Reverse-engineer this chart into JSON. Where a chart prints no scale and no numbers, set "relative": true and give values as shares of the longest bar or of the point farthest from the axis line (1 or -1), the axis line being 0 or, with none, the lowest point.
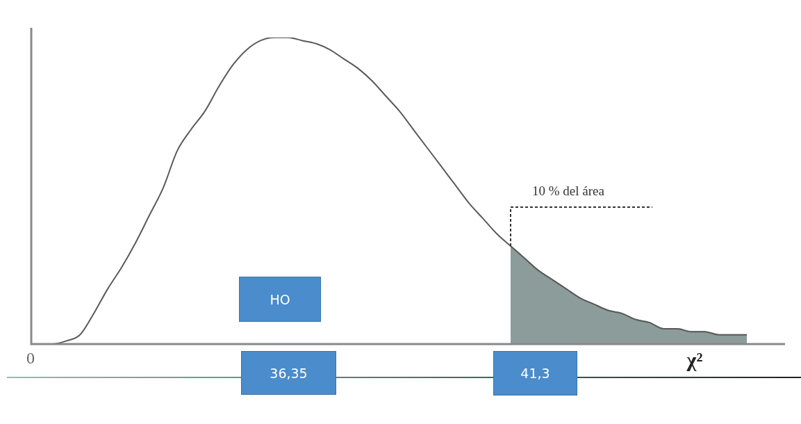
{
  "chart_data": {
    "type": "line",
    "relative": true,
    "xlabel": "χ²",
    "categories": [
      null,
      null,
      null,
      null,
      null,
      null,
      null,
      null,
      null,
      null,
      null,
      null,
      null,
      null,
      null,
      null,
      null,
      null,
      null,
      null,
      null,
      null,
      null,
      null,
      null,
      null,
      null,
      null,
      null,
      null,
      null,
      null,
      null,
      null,
      null,
      null,
      null,
      null,
      null,
      null,
      null,
      null,
      null,
      null,
      null,
      null,
      null,
      null,
      null,
      null,
      null,
      null
    ],
    "series": [
      {
        "color": "#5a5a5a",
        "values": [
          0,
          0,
          0.01,
          0.03,
          0.1,
          0.18,
          0.25,
          0.33,
          0.42,
          0.51,
          0.63,
          0.7,
          0.76,
          0.84,
          0.91,
          0.96,
          0.99,
          1,
          1,
          0.99,
          0.98,
          0.96,
          0.93,
          0.9,
          0.86,
          0.81,
          0.76,
          0.7,
          0.64,
          0.58,
          0.52,
          0.46,
          0.41,
          0.36,
          0.32,
          0.28,
          0.24,
          0.21,
          0.18,
          0.15,
          0.13,
          0.11,
          0.1,
          0.08,
          0.07,
          0.05,
          0.05,
          0.04,
          0.04,
          0.03,
          0.03,
          0.03
        ]
      },
      {
        "type": "area",
        "color": "#8c9c9a",
        "values": [
          null,
          null,
          null,
          null,
          null,
          null,
          null,
          null,
          null,
          null,
          null,
          null,
          null,
          null,
          null,
          null,
          null,
          null,
          null,
          null,
          null,
          null,
          null,
          null,
          null,
          null,
          null,
          null,
          null,
          null,
          null,
          null,
          null,
          null,
          0.32,
          0.28,
          0.24,
          0.21,
          0.18,
          0.15,
          0.13,
          0.11,
          0.1,
          0.08,
          0.07,
          0.05,
          0.05,
          0.04,
          0.04,
          0.03,
          0.03,
          0.03
        ]
      }
    ],
    "annotations": [
      "10 % del área",
      "HO",
      "0",
      "36,35",
      "41,3"
    ],
    "legend": false,
    "marker": "none"
  }
}
